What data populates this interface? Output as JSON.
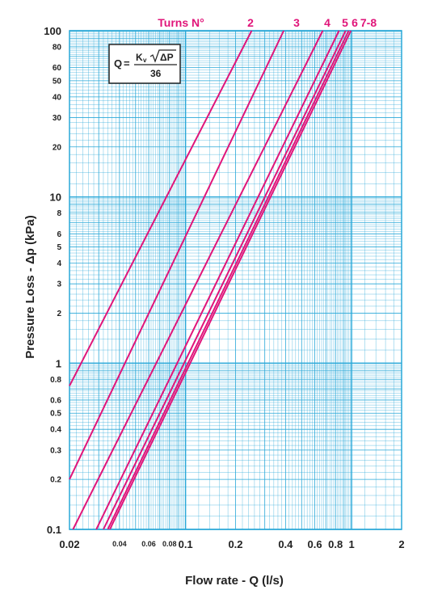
{
  "chart_data": {
    "type": "line",
    "x_scale": "log",
    "y_scale": "log",
    "xlim": [
      0.02,
      2
    ],
    "ylim": [
      0.1,
      100
    ],
    "xlabel_prefix": "Flow rate - ",
    "xlabel_bold": "Q",
    "xlabel_suffix": " (l/s)",
    "ylabel": "Pressure Loss  - Δp (kPa)",
    "x_ticks": [
      {
        "v": 0.02,
        "t": "0.02",
        "big": true
      },
      {
        "v": 0.04,
        "t": "0.04",
        "big": false
      },
      {
        "v": 0.06,
        "t": "0.06",
        "big": false
      },
      {
        "v": 0.08,
        "t": "0.08",
        "big": false
      },
      {
        "v": 0.1,
        "t": "0.1",
        "big": true
      },
      {
        "v": 0.2,
        "t": "0.2",
        "big": true
      },
      {
        "v": 0.4,
        "t": "0.4",
        "big": true
      },
      {
        "v": 0.6,
        "t": "0.6",
        "big": true
      },
      {
        "v": 0.8,
        "t": "0.8",
        "big": true
      },
      {
        "v": 1,
        "t": "1",
        "big": true
      },
      {
        "v": 2,
        "t": "2",
        "big": true
      }
    ],
    "y_ticks": [
      {
        "v": 100,
        "t": "100",
        "big": true
      },
      {
        "v": 80,
        "t": "80",
        "big": false
      },
      {
        "v": 60,
        "t": "60",
        "big": false
      },
      {
        "v": 50,
        "t": "50",
        "big": false
      },
      {
        "v": 40,
        "t": "40",
        "big": false
      },
      {
        "v": 30,
        "t": "30",
        "big": false
      },
      {
        "v": 20,
        "t": "20",
        "big": false
      },
      {
        "v": 10,
        "t": "10",
        "big": true
      },
      {
        "v": 8,
        "t": "8",
        "big": false
      },
      {
        "v": 6,
        "t": "6",
        "big": false
      },
      {
        "v": 5,
        "t": "5",
        "big": false
      },
      {
        "v": 4,
        "t": "4",
        "big": false
      },
      {
        "v": 3,
        "t": "3",
        "big": false
      },
      {
        "v": 2,
        "t": "2",
        "big": false
      },
      {
        "v": 1,
        "t": "1",
        "big": true
      },
      {
        "v": 0.8,
        "t": "0.8",
        "big": false
      },
      {
        "v": 0.6,
        "t": "0.6",
        "big": false
      },
      {
        "v": 0.5,
        "t": "0.5",
        "big": false
      },
      {
        "v": 0.4,
        "t": "0.4",
        "big": false
      },
      {
        "v": 0.3,
        "t": "0.3",
        "big": false
      },
      {
        "v": 0.2,
        "t": "0.2",
        "big": false
      },
      {
        "v": 0.1,
        "t": "0.1",
        "big": true
      }
    ],
    "grid": true,
    "series_header": "Turns N°",
    "series": [
      {
        "label": "",
        "points": [
          [
            0.02,
            0.73
          ],
          [
            0.25,
            100
          ]
        ]
      },
      {
        "label": "2",
        "points": [
          [
            0.02,
            0.2
          ],
          [
            0.39,
            100
          ]
        ]
      },
      {
        "label": "3",
        "points": [
          [
            0.021,
            0.1
          ],
          [
            0.67,
            100
          ]
        ]
      },
      {
        "label": "4",
        "points": [
          [
            0.029,
            0.1
          ],
          [
            0.84,
            100
          ]
        ]
      },
      {
        "label": "5",
        "points": [
          [
            0.032,
            0.1
          ],
          [
            0.92,
            100
          ]
        ]
      },
      {
        "label": "6",
        "points": [
          [
            0.034,
            0.1
          ],
          [
            0.96,
            100
          ]
        ]
      },
      {
        "label": "7-8",
        "points": [
          [
            0.035,
            0.1
          ],
          [
            0.99,
            100
          ]
        ]
      }
    ],
    "series_label_text": [
      "2",
      "3",
      "4",
      "5",
      "6",
      "7-8"
    ],
    "series_color": "#e0157a",
    "grid_color": "#29a8d8",
    "formula": {
      "lhs": "Q",
      "eq": "=",
      "numerator_k": "K",
      "numerator_v": "v",
      "numerator_root": "ΔP",
      "denominator": "36"
    }
  }
}
